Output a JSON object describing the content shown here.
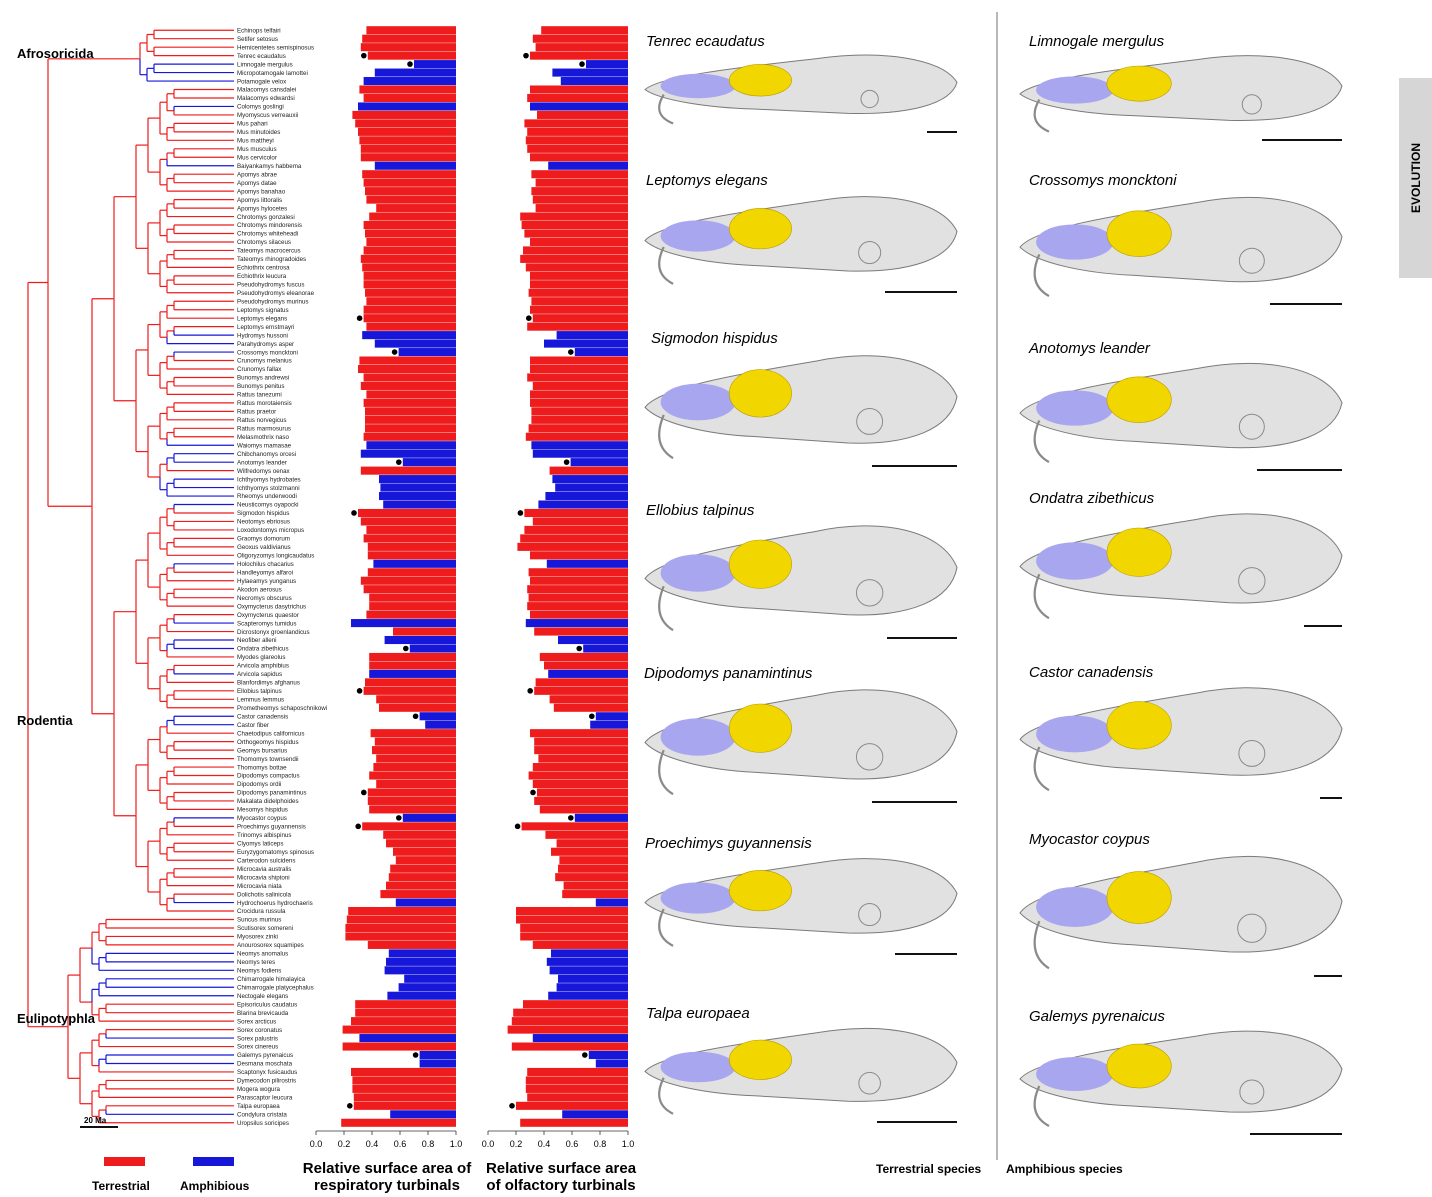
{
  "side_tab": "EVOLUTION",
  "clades": [
    "Afrosoricida",
    "Rodentia",
    "Eulipotyphla"
  ],
  "time_scale_label": "20 Ma",
  "legend": {
    "terrestrial_label": "Terrestrial",
    "amphibious_label": "Amphibious",
    "terrestrial_color": "#ee1c1c",
    "amphibious_color": "#1717d9"
  },
  "axis_titles": {
    "respiratory": "Relative surface area of respiratory turbinals",
    "olfactory": "Relative surface area of olfactory turbinals"
  },
  "tick_labels": [
    "0.0",
    "0.2",
    "0.4",
    "0.6",
    "0.8",
    "1.0"
  ],
  "panel_headers": {
    "terrestrial": "Terrestrial species",
    "amphibious": "Amphibious species"
  },
  "terrestrial_species": [
    "Tenrec ecaudatus",
    "Leptomys elegans",
    "Sigmodon hispidus",
    "Ellobius talpinus",
    "Dipodomys panamintinus",
    "Proechimys guyannensis",
    "Talpa europaea"
  ],
  "amphibious_species": [
    "Limnogale mergulus",
    "Crossomys moncktoni",
    "Anotomys leander",
    "Ondatra zibethicus",
    "Castor canadensis",
    "Myocastor coypus",
    "Galemys pyrenaicus"
  ],
  "colors": {
    "olfactory_turbinal": "#f2d600",
    "respiratory_turbinal": "#a9a6f0",
    "skull": "#c8c8c8"
  },
  "chart_data": [
    {
      "type": "bar",
      "orientation": "horizontal",
      "xlabel": "Relative surface area of respiratory turbinals",
      "xlim": [
        0,
        1
      ],
      "categories": [
        "Echinops telfairi",
        "Setifer setosus",
        "Hemicentetes semispinosus",
        "Tenrec ecaudatus",
        "Limnogale mergulus",
        "Micropotamogale lamottei",
        "Potamogale velox",
        "Malacomys cansdalei",
        "Malacomys edwardsi",
        "Colomys goslingi",
        "Myomyscus verreauxii",
        "Mus pahari",
        "Mus minutoides",
        "Mus mattheyi",
        "Mus musculus",
        "Mus cervicolor",
        "Baiyankamys habbema",
        "Apomys abrae",
        "Apomys datae",
        "Apomys banahao",
        "Apomys littoralis",
        "Apomys hylocetes",
        "Chrotomys gonzalesi",
        "Chrotomys mindorensis",
        "Chrotomys whiteheadi",
        "Chrotomys silaceus",
        "Tateomys macrocercus",
        "Tateomys rhinogradoides",
        "Echiothrix centrosa",
        "Echiothrix leucura",
        "Pseudohydromys fuscus",
        "Pseudohydromys eleanorae",
        "Pseudohydromys murinus",
        "Leptomys signatus",
        "Leptomys elegans",
        "Leptomys ernstmayri",
        "Hydromys hussoni",
        "Parahydromys asper",
        "Crossomys moncktoni",
        "Crunomys melanius",
        "Crunomys fallax",
        "Bunomys andrewsi",
        "Bunomys penitus",
        "Rattus tanezumi",
        "Rattus morotaiensis",
        "Rattus praetor",
        "Rattus norvegicus",
        "Rattus marmosurus",
        "Melasmothrix naso",
        "Waiomys mamasae",
        "Chibchanomys orcesi",
        "Anotomys leander",
        "Wilfredomys oenax",
        "Ichthyomys hydrobates",
        "Ichthyomys stolzmanni",
        "Rheomys underwoodi",
        "Neusticomys oyapocki",
        "Sigmodon hispidus",
        "Neotomys ebriosus",
        "Loxodontomys micropus",
        "Graomys domorum",
        "Geoxus valdivianus",
        "Oligoryzomys longicaudatus",
        "Holochilus chacarius",
        "Handleyomys alfaroi",
        "Hylaeamys yunganus",
        "Akodon aerosus",
        "Necromys obscurus",
        "Oxymycterus dasytrichus",
        "Oxymycterus quaestor",
        "Scapteromys tumidus",
        "Dicrostonyx groenlandicus",
        "Neofiber alleni",
        "Ondatra zibethicus",
        "Myodes glareolus",
        "Arvicola amphibius",
        "Arvicola sapidus",
        "Blanfordimys afghanus",
        "Ellobius talpinus",
        "Lemmus lemmus",
        "Prometheomys schaposchnikowi",
        "Castor canadensis",
        "Castor fiber",
        "Chaetodipus californicus",
        "Orthogeomys hispidus",
        "Geomys bursarius",
        "Thomomys townsendii",
        "Thomomys bottae",
        "Dipodomys compactus",
        "Dipodomys ordii",
        "Dipodomys panamintinus",
        "Makalata didelphoides",
        "Mesomys hispidus",
        "Myocastor coypus",
        "Proechimys guyannensis",
        "Trinomys albispinus",
        "Clyomys laticeps",
        "Euryzygomatomys spinosus",
        "Carterodon sulcidens",
        "Microcavia australis",
        "Microcavia shiptoni",
        "Microcavia niata",
        "Dolichotis salinicola",
        "Hydrochoerus hydrochaeris",
        "Crocidura russula",
        "Suncus murinus",
        "Scutisorex somereni",
        "Myosorex zinki",
        "Anourosorex squamipes",
        "Neomys anomalus",
        "Neomys teres",
        "Neomys fodiens",
        "Chimarrogale himalayica",
        "Chimarrogale platycephalus",
        "Nectogale elegans",
        "Episoriculus caudatus",
        "Blarina brevicauda",
        "Sorex arcticus",
        "Sorex coronatus",
        "Sorex palustris",
        "Sorex cinereus",
        "Galemys pyrenaicus",
        "Desmana moschata",
        "Scaptonyx fusicaudus",
        "Dymecodon pilirostris",
        "Mogera wogura",
        "Parascaptor leucura",
        "Talpa europaea",
        "Condylura cristata",
        "Uropsilus soricipes"
      ],
      "lifestyle": [
        "T",
        "T",
        "T",
        "T",
        "A",
        "A",
        "A",
        "T",
        "T",
        "A",
        "T",
        "T",
        "T",
        "T",
        "T",
        "T",
        "A",
        "T",
        "T",
        "T",
        "T",
        "T",
        "T",
        "T",
        "T",
        "T",
        "T",
        "T",
        "T",
        "T",
        "T",
        "T",
        "T",
        "T",
        "T",
        "T",
        "A",
        "A",
        "A",
        "T",
        "T",
        "T",
        "T",
        "T",
        "T",
        "T",
        "T",
        "T",
        "T",
        "A",
        "A",
        "A",
        "T",
        "A",
        "A",
        "A",
        "A",
        "T",
        "T",
        "T",
        "T",
        "T",
        "T",
        "A",
        "T",
        "T",
        "T",
        "T",
        "T",
        "T",
        "A",
        "T",
        "A",
        "A",
        "T",
        "T",
        "A",
        "T",
        "T",
        "T",
        "T",
        "A",
        "A",
        "T",
        "T",
        "T",
        "T",
        "T",
        "T",
        "T",
        "T",
        "T",
        "T",
        "A",
        "T",
        "T",
        "T",
        "T",
        "T",
        "T",
        "T",
        "T",
        "T",
        "A",
        "T",
        "T",
        "T",
        "T",
        "T",
        "A",
        "A",
        "A",
        "A",
        "A",
        "A",
        "T",
        "T",
        "T",
        "T",
        "A",
        "T",
        "A",
        "A",
        "T",
        "T",
        "T",
        "T",
        "T",
        "A",
        "T"
      ],
      "values": [
        0.64,
        0.67,
        0.68,
        0.63,
        0.3,
        0.58,
        0.66,
        0.69,
        0.66,
        0.7,
        0.74,
        0.72,
        0.7,
        0.69,
        0.68,
        0.68,
        0.58,
        0.67,
        0.66,
        0.65,
        0.64,
        0.57,
        0.62,
        0.66,
        0.65,
        0.64,
        0.66,
        0.68,
        0.67,
        0.66,
        0.66,
        0.65,
        0.64,
        0.66,
        0.66,
        0.64,
        0.67,
        0.58,
        0.41,
        0.69,
        0.7,
        0.66,
        0.68,
        0.64,
        0.66,
        0.65,
        0.65,
        0.65,
        0.66,
        0.64,
        0.68,
        0.38,
        0.68,
        0.55,
        0.54,
        0.55,
        0.52,
        0.7,
        0.68,
        0.64,
        0.66,
        0.63,
        0.63,
        0.59,
        0.63,
        0.68,
        0.66,
        0.62,
        0.62,
        0.64,
        0.75,
        0.45,
        0.51,
        0.33,
        0.62,
        0.62,
        0.62,
        0.65,
        0.66,
        0.57,
        0.55,
        0.26,
        0.22,
        0.61,
        0.58,
        0.6,
        0.57,
        0.59,
        0.62,
        0.57,
        0.63,
        0.63,
        0.62,
        0.38,
        0.67,
        0.52,
        0.5,
        0.45,
        0.43,
        0.47,
        0.48,
        0.5,
        0.54,
        0.43,
        0.77,
        0.78,
        0.79,
        0.79,
        0.63,
        0.48,
        0.5,
        0.51,
        0.37,
        0.41,
        0.49,
        0.72,
        0.72,
        0.75,
        0.81,
        0.69,
        0.81,
        0.26,
        0.26,
        0.75,
        0.74,
        0.74,
        0.73,
        0.73,
        0.47,
        0.82
      ],
      "marked": [
        "Tenrec ecaudatus",
        "Limnogale mergulus",
        "Leptomys elegans",
        "Crossomys moncktoni",
        "Sigmodon hispidus",
        "Anotomys leander",
        "Ondatra zibethicus",
        "Ellobius talpinus",
        "Castor canadensis",
        "Dipodomys panamintinus",
        "Myocastor coypus",
        "Proechimys guyannensis",
        "Galemys pyrenaicus",
        "Talpa europaea"
      ]
    },
    {
      "type": "bar",
      "orientation": "horizontal",
      "xlabel": "Relative surface area of olfactory turbinals",
      "xlim": [
        0,
        1
      ],
      "values": [
        0.62,
        0.68,
        0.66,
        0.7,
        0.3,
        0.54,
        0.48,
        0.7,
        0.72,
        0.7,
        0.65,
        0.74,
        0.72,
        0.73,
        0.72,
        0.7,
        0.57,
        0.69,
        0.66,
        0.69,
        0.68,
        0.66,
        0.77,
        0.76,
        0.74,
        0.7,
        0.75,
        0.77,
        0.73,
        0.7,
        0.7,
        0.71,
        0.69,
        0.7,
        0.68,
        0.72,
        0.51,
        0.6,
        0.38,
        0.7,
        0.7,
        0.72,
        0.68,
        0.7,
        0.7,
        0.69,
        0.69,
        0.71,
        0.73,
        0.69,
        0.68,
        0.41,
        0.56,
        0.54,
        0.52,
        0.59,
        0.64,
        0.74,
        0.68,
        0.74,
        0.77,
        0.79,
        0.7,
        0.58,
        0.71,
        0.7,
        0.72,
        0.71,
        0.72,
        0.7,
        0.73,
        0.67,
        0.5,
        0.32,
        0.63,
        0.6,
        0.57,
        0.66,
        0.67,
        0.56,
        0.53,
        0.23,
        0.27,
        0.7,
        0.67,
        0.67,
        0.64,
        0.68,
        0.71,
        0.68,
        0.65,
        0.67,
        0.63,
        0.38,
        0.76,
        0.59,
        0.51,
        0.55,
        0.49,
        0.5,
        0.52,
        0.46,
        0.47,
        0.23,
        0.8,
        0.8,
        0.77,
        0.77,
        0.68,
        0.55,
        0.58,
        0.56,
        0.5,
        0.51,
        0.57,
        0.75,
        0.82,
        0.83,
        0.86,
        0.68,
        0.83,
        0.28,
        0.23,
        0.72,
        0.73,
        0.73,
        0.72,
        0.8,
        0.47,
        0.77
      ]
    }
  ]
}
